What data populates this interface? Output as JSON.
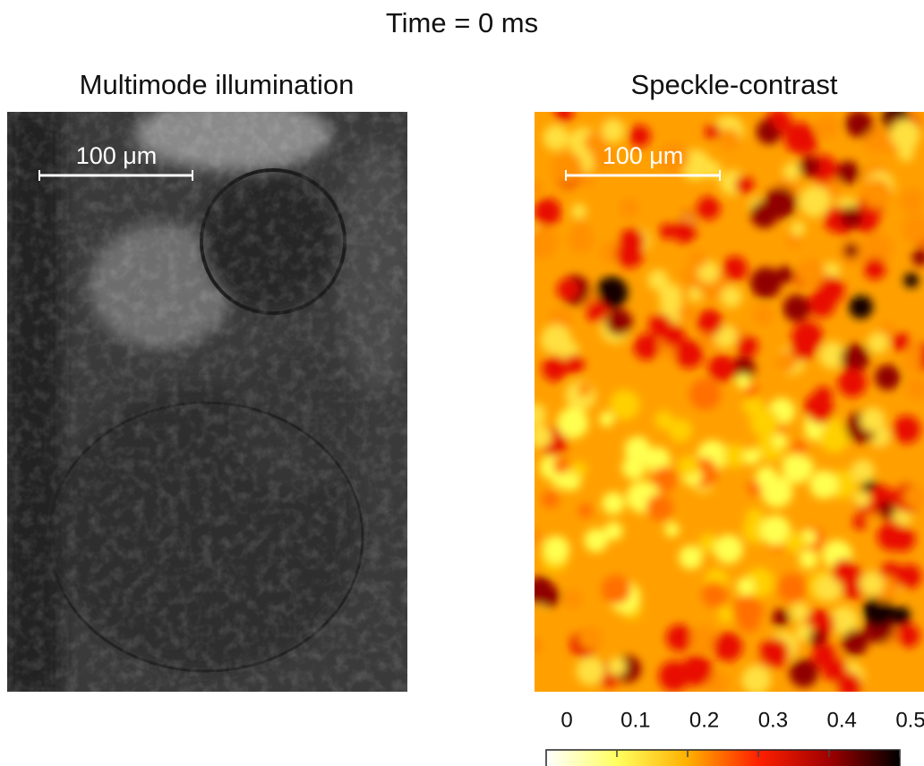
{
  "title": "Time = 0 ms",
  "panels": [
    {
      "title": "Multimode illumination",
      "scale_bar": "100 μm"
    },
    {
      "title": "Speckle-contrast",
      "scale_bar": "100 μm"
    }
  ],
  "colorbar": {
    "lim": [
      0,
      0.5
    ],
    "ticks": [
      0,
      0.1,
      0.2,
      0.3,
      0.4,
      0.5
    ]
  }
}
